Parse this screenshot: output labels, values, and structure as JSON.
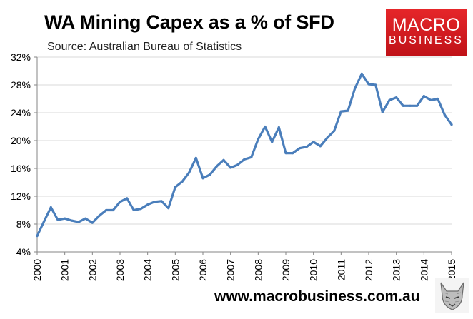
{
  "header": {
    "title": "WA Mining Capex as a % of SFD",
    "source": "Source: Australian Bureau of Statistics"
  },
  "logo": {
    "line1": "MACRO",
    "line2": "BUSINESS"
  },
  "footer": {
    "url": "www.macrobusiness.com.au"
  },
  "colors": {
    "series": "#4a7ebb",
    "grid": "#d9d9d9",
    "axis": "#868686",
    "logo_red": "#e11b22"
  },
  "chart_data": {
    "type": "line",
    "title": "WA Mining Capex as a % of SFD",
    "xlabel": "",
    "ylabel": "",
    "xlim": [
      2000,
      2015
    ],
    "ylim": [
      4,
      32
    ],
    "y_ticks": [
      4,
      8,
      12,
      16,
      20,
      24,
      28,
      32
    ],
    "y_tick_labels": [
      "4%",
      "8%",
      "12%",
      "16%",
      "20%",
      "24%",
      "28%",
      "32%"
    ],
    "x_ticks": [
      2000,
      2001,
      2002,
      2003,
      2004,
      2005,
      2006,
      2007,
      2008,
      2009,
      2010,
      2011,
      2012,
      2013,
      2014,
      2015
    ],
    "x_tick_labels": [
      "2000",
      "2001",
      "2002",
      "2003",
      "2004",
      "2005",
      "2006",
      "2007",
      "2008",
      "2009",
      "2010",
      "2011",
      "2012",
      "2013",
      "2014",
      "2015"
    ],
    "grid": true,
    "series": [
      {
        "name": "WA Mining Capex as a % of SFD",
        "x": [
          2000.0,
          2000.25,
          2000.5,
          2000.75,
          2001.0,
          2001.25,
          2001.5,
          2001.75,
          2002.0,
          2002.25,
          2002.5,
          2002.75,
          2003.0,
          2003.25,
          2003.5,
          2003.75,
          2004.0,
          2004.25,
          2004.5,
          2004.75,
          2005.0,
          2005.25,
          2005.5,
          2005.75,
          2006.0,
          2006.25,
          2006.5,
          2006.75,
          2007.0,
          2007.25,
          2007.5,
          2007.75,
          2008.0,
          2008.25,
          2008.5,
          2008.75,
          2009.0,
          2009.25,
          2009.5,
          2009.75,
          2010.0,
          2010.25,
          2010.5,
          2010.75,
          2011.0,
          2011.25,
          2011.5,
          2011.75,
          2012.0,
          2012.25,
          2012.5,
          2012.75,
          2013.0,
          2013.25,
          2013.5,
          2013.75,
          2014.0,
          2014.25,
          2014.5,
          2014.75,
          2015.0
        ],
        "values": [
          6.3,
          8.4,
          10.4,
          8.6,
          8.8,
          8.5,
          8.3,
          8.8,
          8.2,
          9.2,
          10.0,
          10.0,
          11.2,
          11.7,
          10.0,
          10.2,
          10.8,
          11.2,
          11.3,
          10.3,
          13.3,
          14.1,
          15.4,
          17.5,
          14.6,
          15.1,
          16.3,
          17.2,
          16.1,
          16.5,
          17.3,
          17.6,
          20.2,
          22.0,
          19.8,
          21.9,
          18.2,
          18.2,
          18.9,
          19.1,
          19.8,
          19.2,
          20.4,
          21.4,
          24.2,
          24.3,
          27.5,
          29.6,
          28.1,
          28.0,
          24.1,
          25.8,
          26.2,
          25.0,
          25.0,
          25.0,
          26.4,
          25.8,
          26.0,
          23.7,
          22.3
        ]
      }
    ]
  }
}
